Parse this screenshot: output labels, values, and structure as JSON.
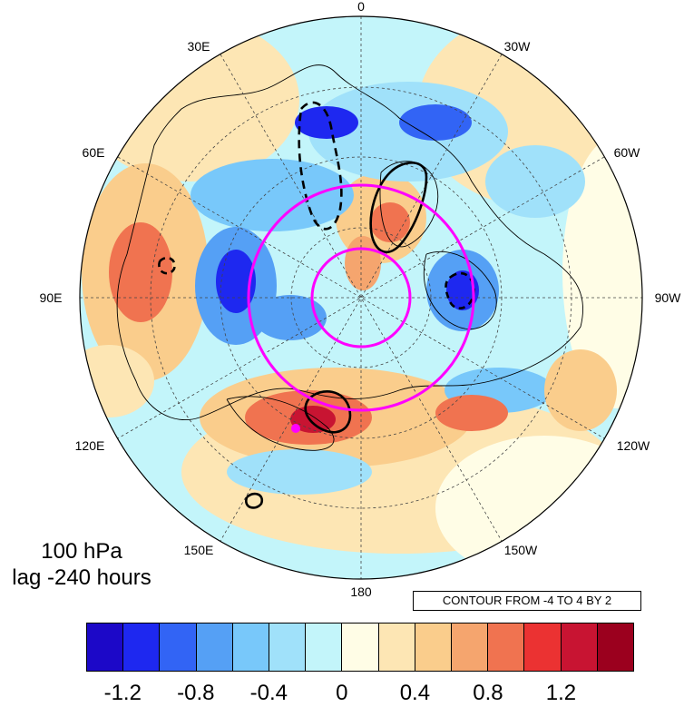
{
  "map": {
    "projection": "north polar stereographic",
    "center": "North Pole",
    "lon_labels": [
      {
        "text": "0",
        "lon": 0
      },
      {
        "text": "30W",
        "lon": -30
      },
      {
        "text": "60W",
        "lon": -60
      },
      {
        "text": "90W",
        "lon": -90
      },
      {
        "text": "120W",
        "lon": -120
      },
      {
        "text": "150W",
        "lon": -150
      },
      {
        "text": "180",
        "lon": 180
      },
      {
        "text": "150E",
        "lon": 150
      },
      {
        "text": "120E",
        "lon": 120
      },
      {
        "text": "90E",
        "lon": 90
      },
      {
        "text": "60E",
        "lon": 60
      },
      {
        "text": "30E",
        "lon": 30
      }
    ],
    "level_label": "100 hPa",
    "lag_label": "lag -240 hours",
    "contour_label": "CONTOUR FROM -4 TO 4 BY 2",
    "highlight_color": "#ff00ff",
    "contour_color": "#000000"
  },
  "colorbar": {
    "colors": [
      "#1c08c8",
      "#1e28f0",
      "#3264f5",
      "#55a0f5",
      "#78c8fa",
      "#a0e1fa",
      "#c3f5fa",
      "#fffde6",
      "#fde6b4",
      "#facd8c",
      "#f5a56e",
      "#f07350",
      "#eb3232",
      "#c81432",
      "#9b001e"
    ],
    "tick_labels": [
      "-1.2",
      "-0.8",
      "-0.4",
      "0",
      "0.4",
      "0.8",
      "1.2"
    ]
  }
}
